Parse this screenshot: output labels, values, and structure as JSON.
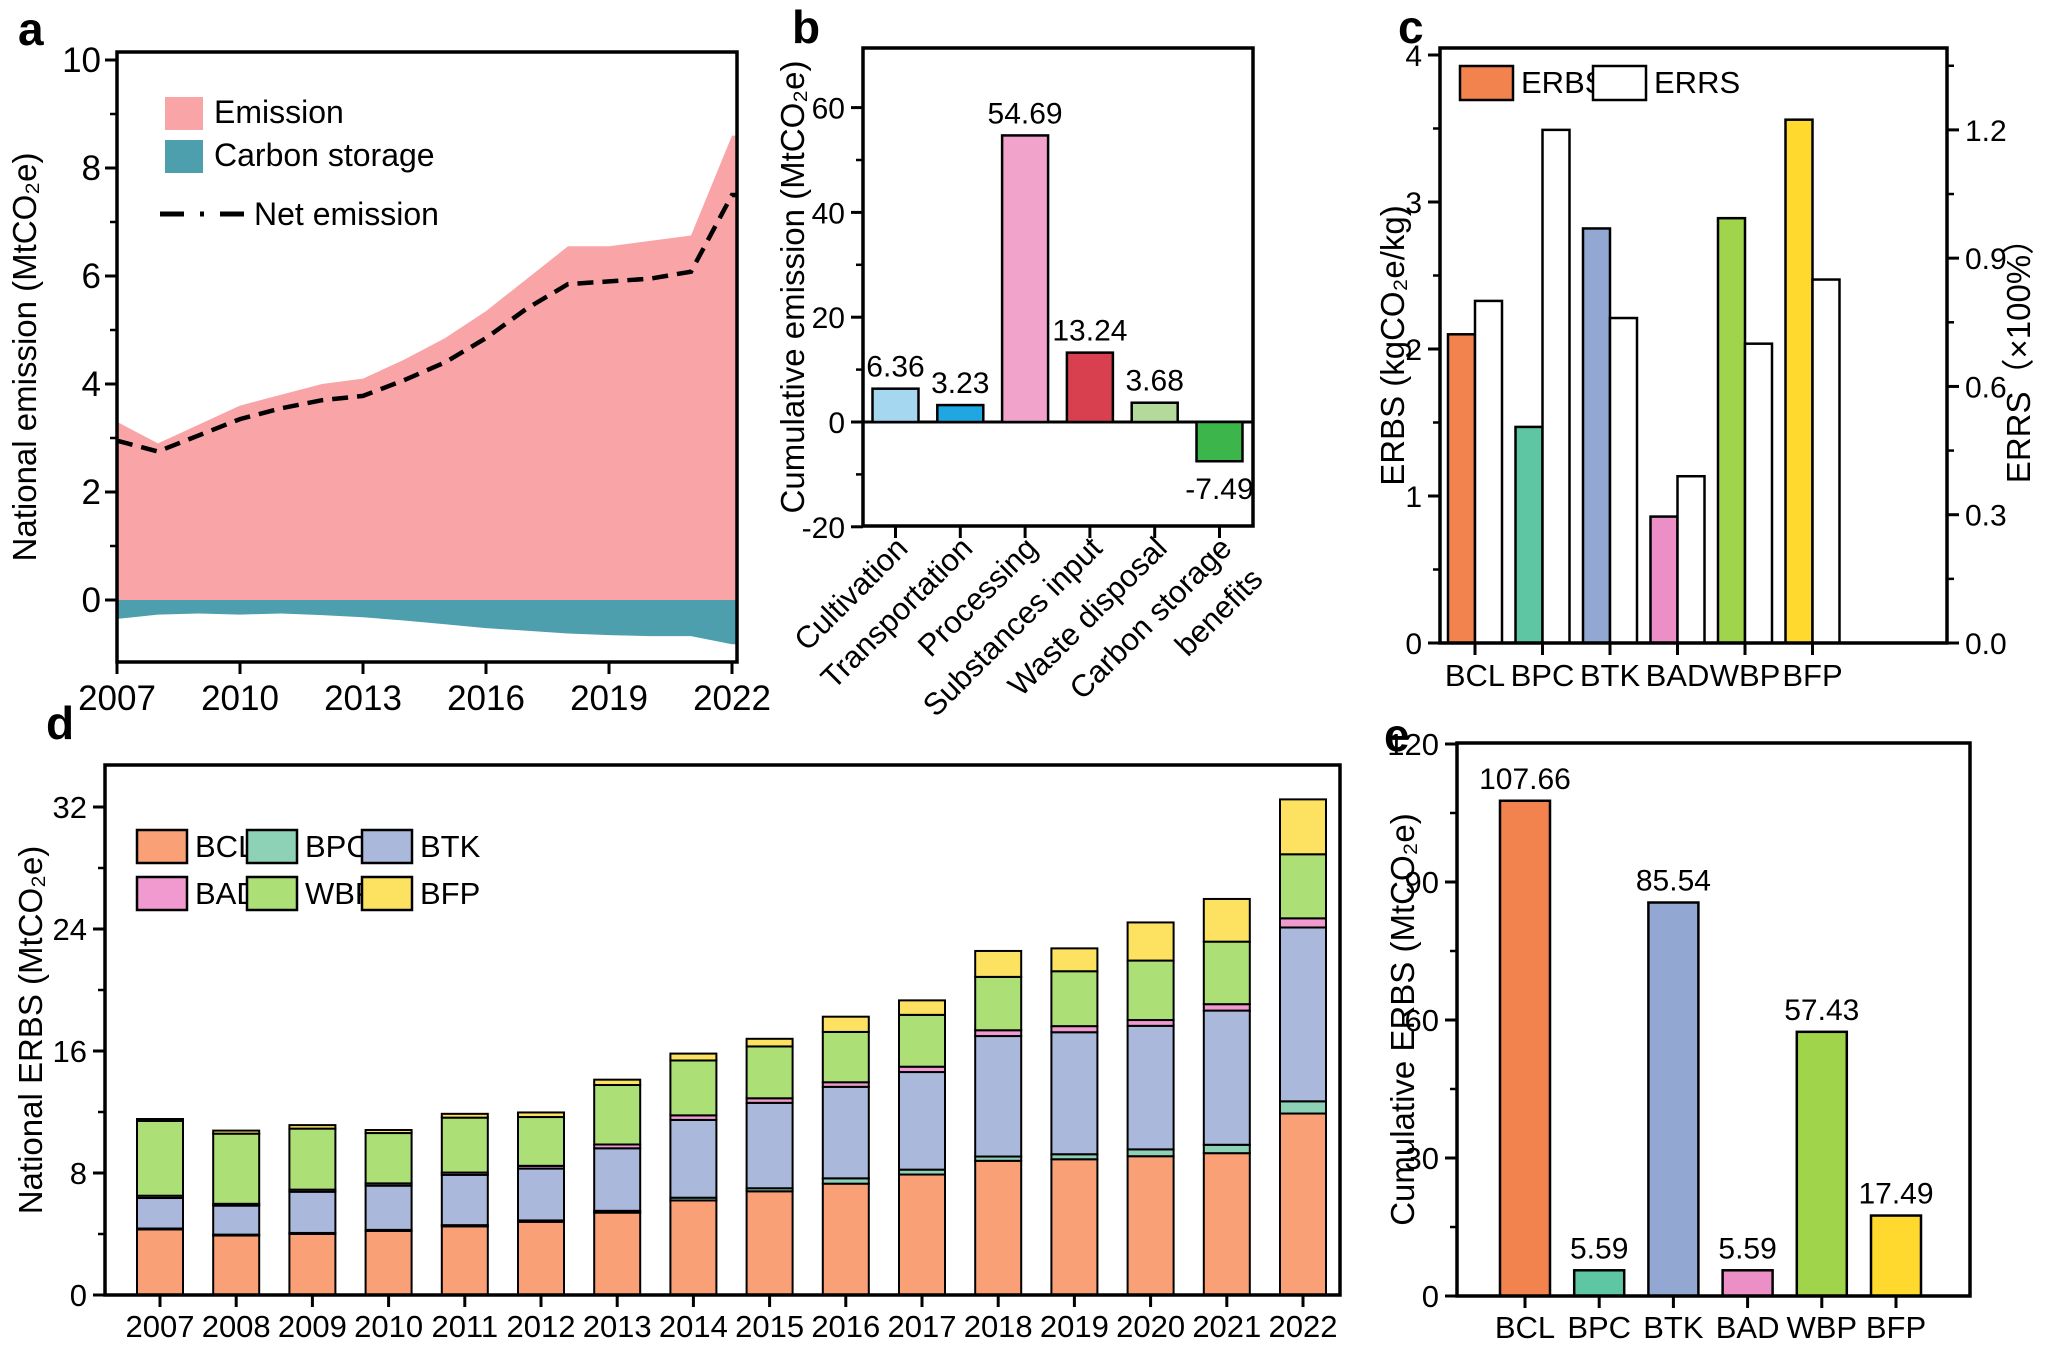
{
  "figure": {
    "background": "#FFFFFF"
  },
  "chart_data": [
    {
      "id": "a",
      "panel_label": "a",
      "type": "area",
      "ylabel": "National emission (MtCO₂e)",
      "xlim": [
        2007,
        2022
      ],
      "ylim": [
        -1.15,
        10.15
      ],
      "yticks": [
        0,
        2,
        4,
        6,
        8,
        10
      ],
      "xticks": [
        2007,
        2010,
        2013,
        2016,
        2019,
        2022
      ],
      "x_years": [
        2007,
        2008,
        2009,
        2010,
        2011,
        2012,
        2013,
        2014,
        2015,
        2016,
        2017,
        2018,
        2019,
        2020,
        2021,
        2022
      ],
      "legend": [
        "Emission",
        "Carbon storage",
        "Net emission"
      ],
      "series": [
        {
          "name": "Emission",
          "kind": "area",
          "color": "#F9A5A8",
          "values": [
            3.3,
            2.9,
            3.25,
            3.6,
            3.8,
            4.0,
            4.1,
            4.45,
            4.85,
            5.35,
            5.95,
            6.55,
            6.55,
            6.65,
            6.75,
            8.6
          ]
        },
        {
          "name": "Carbon storage",
          "kind": "area",
          "color": "#4D9FAE",
          "values": [
            -0.35,
            -0.27,
            -0.25,
            -0.27,
            -0.25,
            -0.28,
            -0.32,
            -0.38,
            -0.45,
            -0.52,
            -0.57,
            -0.62,
            -0.65,
            -0.67,
            -0.67,
            -0.82
          ]
        },
        {
          "name": "Net emission",
          "kind": "dashed-line",
          "color": "#000000",
          "values": [
            2.95,
            2.75,
            3.05,
            3.35,
            3.55,
            3.7,
            3.78,
            4.07,
            4.4,
            4.85,
            5.4,
            5.85,
            5.9,
            5.95,
            6.08,
            7.5
          ]
        }
      ]
    },
    {
      "id": "b",
      "panel_label": "b",
      "type": "bar",
      "ylabel": "Cumulative emission (MtCO₂e)",
      "ylim": [
        -20,
        71
      ],
      "yticks": [
        -20,
        0,
        20,
        40,
        60
      ],
      "categories": [
        "Cultivation",
        "Transportation",
        "Processing",
        "Substances input",
        "Waste disposal",
        "Carbon storage benefits"
      ],
      "category_lines": [
        [
          "Cultivation"
        ],
        [
          "Transportation"
        ],
        [
          "Processing"
        ],
        [
          "Substances input"
        ],
        [
          "Waste disposal"
        ],
        [
          "Carbon storage",
          "benefits"
        ]
      ],
      "values": [
        6.36,
        3.23,
        54.69,
        13.24,
        3.68,
        -7.49
      ],
      "value_labels": [
        "6.36",
        "3.23",
        "54.69",
        "13.24",
        "3.68",
        "-7.49"
      ],
      "colors": [
        "#A6D7F0",
        "#1EA7E1",
        "#F2A3CC",
        "#D8404F",
        "#B3D99B",
        "#3CB54B"
      ]
    },
    {
      "id": "c",
      "panel_label": "c",
      "type": "grouped-bar-dual-axis",
      "ylabel_left": "ERBS (kgCO₂e/kg)",
      "ylabel_right": "ERRS（×100%）",
      "ylim_left": [
        0,
        4.05
      ],
      "ylim_right": [
        0,
        1.39
      ],
      "yticks_left": [
        0,
        1,
        2,
        3,
        4
      ],
      "yticks_right": [
        "0.0",
        "0.3",
        "0.6",
        "0.9",
        "1.2"
      ],
      "categories": [
        "BCL",
        "BPC",
        "BTK",
        "BAD",
        "WBP",
        "BFP"
      ],
      "legend": [
        "ERBS",
        "ERRS"
      ],
      "series": [
        {
          "name": "ERBS",
          "axis": "left",
          "colors": [
            "#F2834F",
            "#5FC6A3",
            "#92A7D1",
            "#EB8FC6",
            "#A0D44A",
            "#FFD92E"
          ],
          "values": [
            2.1,
            1.47,
            2.82,
            0.86,
            2.89,
            3.56
          ]
        },
        {
          "name": "ERRS",
          "axis": "right",
          "color": "#FFFFFF",
          "values": [
            0.8,
            1.2,
            0.76,
            0.39,
            0.7,
            0.85
          ]
        }
      ]
    },
    {
      "id": "d",
      "panel_label": "d",
      "type": "stacked-bar",
      "ylabel": "National ERBS (MtCO₂e)",
      "ylim": [
        0,
        34.7
      ],
      "yticks": [
        0,
        8,
        16,
        24,
        32
      ],
      "x_years": [
        2007,
        2008,
        2009,
        2010,
        2011,
        2012,
        2013,
        2014,
        2015,
        2016,
        2017,
        2018,
        2019,
        2020,
        2021,
        2022
      ],
      "legend_rows": [
        [
          "BCL",
          "BPC",
          "BTK"
        ],
        [
          "BAD",
          "WBP",
          "BFP"
        ]
      ],
      "series": [
        {
          "name": "BCL",
          "color": "#F9A077",
          "values": [
            4.3,
            3.9,
            4.0,
            4.2,
            4.5,
            4.8,
            5.4,
            6.2,
            6.8,
            7.3,
            7.9,
            8.8,
            8.9,
            9.1,
            9.3,
            11.9
          ]
        },
        {
          "name": "BPC",
          "color": "#8DD2B7",
          "values": [
            0.06,
            0.06,
            0.07,
            0.07,
            0.08,
            0.09,
            0.12,
            0.18,
            0.2,
            0.35,
            0.32,
            0.28,
            0.33,
            0.45,
            0.55,
            0.8
          ]
        },
        {
          "name": "BTK",
          "color": "#AAB8DC",
          "values": [
            2.0,
            1.9,
            2.7,
            2.9,
            3.3,
            3.4,
            4.1,
            5.1,
            5.6,
            6.0,
            6.4,
            7.9,
            8.0,
            8.1,
            8.8,
            11.4
          ]
        },
        {
          "name": "BAD",
          "color": "#F09AD0",
          "values": [
            0.15,
            0.12,
            0.14,
            0.15,
            0.15,
            0.18,
            0.25,
            0.3,
            0.3,
            0.3,
            0.35,
            0.38,
            0.4,
            0.38,
            0.42,
            0.6
          ]
        },
        {
          "name": "WBP",
          "color": "#ACE077",
          "values": [
            4.9,
            4.6,
            4.0,
            3.3,
            3.6,
            3.2,
            3.9,
            3.6,
            3.4,
            3.3,
            3.4,
            3.5,
            3.6,
            3.9,
            4.1,
            4.2
          ]
        },
        {
          "name": "BFP",
          "color": "#FCE260",
          "values": [
            0.13,
            0.2,
            0.23,
            0.2,
            0.25,
            0.3,
            0.35,
            0.45,
            0.5,
            1.0,
            0.95,
            1.7,
            1.5,
            2.5,
            2.8,
            3.6
          ]
        }
      ]
    },
    {
      "id": "e",
      "panel_label": "e",
      "type": "bar",
      "ylabel": "Cumulative ERBS (MtCO₂e)",
      "ylim": [
        0,
        120
      ],
      "yticks": [
        0,
        30,
        60,
        90,
        120
      ],
      "categories": [
        "BCL",
        "BPC",
        "BTK",
        "BAD",
        "WBP",
        "BFP"
      ],
      "values": [
        107.66,
        5.59,
        85.54,
        5.59,
        57.43,
        17.49
      ],
      "value_labels": [
        "107.66",
        "5.59",
        "85.54",
        "5.59",
        "57.43",
        "17.49"
      ],
      "colors": [
        "#F2834F",
        "#5FC6A3",
        "#92A7D1",
        "#EB8FC6",
        "#A0D44A",
        "#FFD92E"
      ]
    }
  ]
}
